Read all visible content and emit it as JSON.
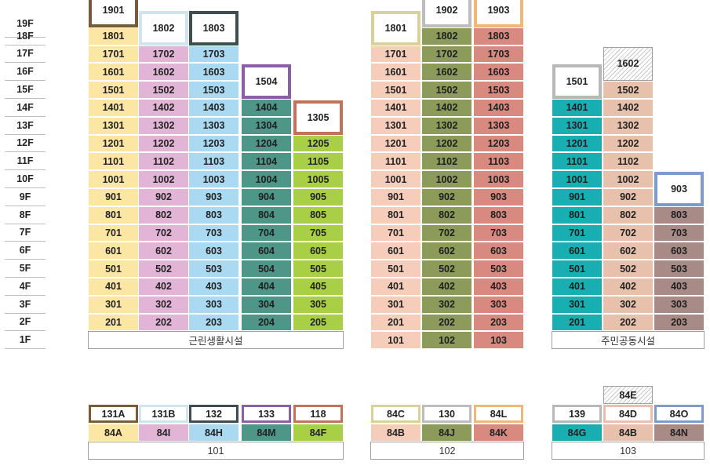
{
  "floors": [
    "19F",
    "18F",
    "17F",
    "16F",
    "15F",
    "14F",
    "13F",
    "12F",
    "11F",
    "10F",
    "9F",
    "8F",
    "7F",
    "6F",
    "5F",
    "4F",
    "3F",
    "2F",
    "1F"
  ],
  "colors": {
    "yellow": "#FCE6A4",
    "pink": "#E2B5D6",
    "blue": "#A9DAF2",
    "teal": "#4E9688",
    "green": "#A8CF45",
    "peach": "#F6CDBA",
    "olive": "#8C9A5A",
    "salmon": "#D98A80",
    "cyan": "#19AFB2",
    "tan": "#E8C1AD",
    "mauve": "#A88A87"
  },
  "buildings": [
    {
      "name": "101",
      "base_label": "근린생활시설",
      "lines": [
        {
          "color": "yellow",
          "top": {
            "label": "1901",
            "border": "#7A5A3A"
          },
          "units": [
            "1801",
            "1701",
            "1601",
            "1501",
            "1401",
            "1301",
            "1201",
            "1101",
            "1001",
            "901",
            "801",
            "701",
            "601",
            "501",
            "401",
            "301",
            "201"
          ]
        },
        {
          "color": "pink",
          "top": {
            "label": "1802",
            "border": "#CFE6F0"
          },
          "units": [
            "1702",
            "1602",
            "1502",
            "1402",
            "1302",
            "1202",
            "1102",
            "1002",
            "902",
            "802",
            "702",
            "602",
            "502",
            "402",
            "302",
            "202"
          ]
        },
        {
          "color": "blue",
          "top": {
            "label": "1803",
            "border": "#3E4E50"
          },
          "units": [
            "1703",
            "1603",
            "1503",
            "1403",
            "1303",
            "1203",
            "1103",
            "1003",
            "903",
            "803",
            "703",
            "603",
            "503",
            "403",
            "303",
            "203"
          ]
        },
        {
          "color": "teal",
          "top": {
            "label": "1504",
            "border": "#8A5FA8"
          },
          "units": [
            "1404",
            "1304",
            "1204",
            "1104",
            "1004",
            "904",
            "804",
            "704",
            "604",
            "504",
            "404",
            "304",
            "204"
          ]
        },
        {
          "color": "green",
          "top": {
            "label": "1305",
            "border": "#C0725A"
          },
          "units": [
            "1205",
            "1105",
            "1005",
            "905",
            "805",
            "705",
            "605",
            "505",
            "405",
            "305",
            "205"
          ]
        }
      ]
    },
    {
      "name": "102",
      "base_label": "",
      "lines": [
        {
          "color": "peach",
          "top": {
            "label": "1801",
            "border": "#D8D29A"
          },
          "units": [
            "1701",
            "1601",
            "1501",
            "1401",
            "1301",
            "1201",
            "1101",
            "1001",
            "901",
            "801",
            "701",
            "601",
            "501",
            "401",
            "301",
            "201",
            "101"
          ]
        },
        {
          "color": "olive",
          "top": {
            "label": "1902",
            "border": "#BDBDBD"
          },
          "units": [
            "1802",
            "1702",
            "1602",
            "1502",
            "1402",
            "1302",
            "1202",
            "1102",
            "1002",
            "902",
            "802",
            "702",
            "602",
            "502",
            "402",
            "302",
            "202",
            "102"
          ]
        },
        {
          "color": "salmon",
          "top": {
            "label": "1903",
            "border": "#F0B878"
          },
          "units": [
            "1803",
            "1703",
            "1603",
            "1503",
            "1403",
            "1303",
            "1203",
            "1103",
            "1003",
            "903",
            "803",
            "703",
            "603",
            "503",
            "403",
            "303",
            "203",
            "103"
          ]
        }
      ]
    },
    {
      "name": "103",
      "base_label": "주민공동시설",
      "lines": [
        {
          "color": "cyan",
          "top": {
            "label": "1501",
            "border": "#B8B8B8"
          },
          "units": [
            "1401",
            "1301",
            "1201",
            "1101",
            "1001",
            "901",
            "801",
            "701",
            "601",
            "501",
            "401",
            "301",
            "201"
          ]
        },
        {
          "color": "tan",
          "top": {
            "label": "1602",
            "border": "hatch"
          },
          "units": [
            "1502",
            "1402",
            "1302",
            "1202",
            "1102",
            "1002",
            "902",
            "802",
            "702",
            "602",
            "502",
            "402",
            "302",
            "202"
          ]
        },
        {
          "color": "mauve",
          "top": {
            "label": "903",
            "border": "#7E9CC9"
          },
          "units": [
            "803",
            "703",
            "603",
            "503",
            "403",
            "303",
            "203"
          ]
        }
      ]
    }
  ],
  "lower": [
    {
      "name": "101",
      "top": [
        {
          "label": "131A",
          "border": "#7A5A3A"
        },
        {
          "label": "131B",
          "border": "#CFE6F0"
        },
        {
          "label": "132",
          "border": "#3E4E50"
        },
        {
          "label": "133",
          "border": "#8A5FA8"
        },
        {
          "label": "118",
          "border": "#C0725A"
        }
      ],
      "types": [
        {
          "label": "84A",
          "color": "yellow"
        },
        {
          "label": "84I",
          "color": "pink"
        },
        {
          "label": "84H",
          "color": "blue"
        },
        {
          "label": "84M",
          "color": "teal"
        },
        {
          "label": "84F",
          "color": "green"
        }
      ]
    },
    {
      "name": "102",
      "top": [
        {
          "label": "84C",
          "border": "#D8D29A"
        },
        {
          "label": "130",
          "border": "#BDBDBD"
        },
        {
          "label": "84L",
          "border": "#F0B878"
        }
      ],
      "types": [
        {
          "label": "84B",
          "color": "peach"
        },
        {
          "label": "84J",
          "color": "olive"
        },
        {
          "label": "84K",
          "color": "salmon"
        }
      ]
    },
    {
      "name": "103",
      "extra": "84E",
      "top": [
        {
          "label": "139",
          "border": "#B8B8B8"
        },
        {
          "label": "84D",
          "border": "tan"
        },
        {
          "label": "84O",
          "border": "#7E9CC9"
        }
      ],
      "types": [
        {
          "label": "84G",
          "color": "cyan"
        },
        {
          "label": "84B",
          "color": "tan"
        },
        {
          "label": "84N",
          "color": "mauve"
        }
      ]
    }
  ]
}
